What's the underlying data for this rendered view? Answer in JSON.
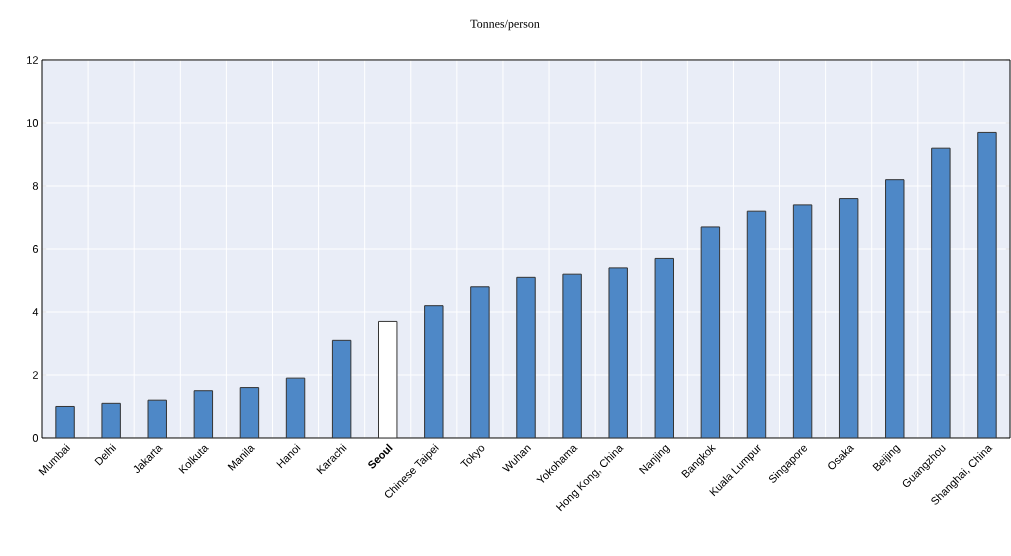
{
  "chart_data": {
    "type": "bar",
    "subtitle": "Tonnes/person",
    "categories": [
      "Mumbai",
      "Delhi",
      "Jakarta",
      "Kolkuta",
      "Manila",
      "Hanoi",
      "Karachi",
      "**Seoul**",
      "Chinese Taipei",
      "Tokyo",
      "Wuhan",
      "Yokohama",
      "Hong Kong, China",
      "Nanjing",
      "Bangkok",
      "Kuala Lumpur",
      "Singapore",
      "Osaka",
      "Beijing",
      "Guangzhou",
      "Shanghai, China"
    ],
    "values": [
      1.0,
      1.1,
      1.2,
      1.5,
      1.6,
      1.9,
      3.1,
      3.7,
      4.2,
      4.8,
      5.1,
      5.2,
      5.4,
      5.7,
      6.7,
      7.2,
      7.4,
      7.6,
      8.2,
      9.2,
      9.7
    ],
    "colors": [
      "#4e88c7",
      "#4e88c7",
      "#4e88c7",
      "#4e88c7",
      "#4e88c7",
      "#4e88c7",
      "#4e88c7",
      "#ffffff",
      "#4e88c7",
      "#4e88c7",
      "#4e88c7",
      "#4e88c7",
      "#4e88c7",
      "#4e88c7",
      "#4e88c7",
      "#4e88c7",
      "#4e88c7",
      "#4e88c7",
      "#4e88c7",
      "#4e88c7",
      "#4e88c7"
    ],
    "ylim": [
      0,
      12
    ],
    "yticks": [
      0,
      2,
      4,
      6,
      8,
      10,
      12
    ],
    "grid": true
  }
}
